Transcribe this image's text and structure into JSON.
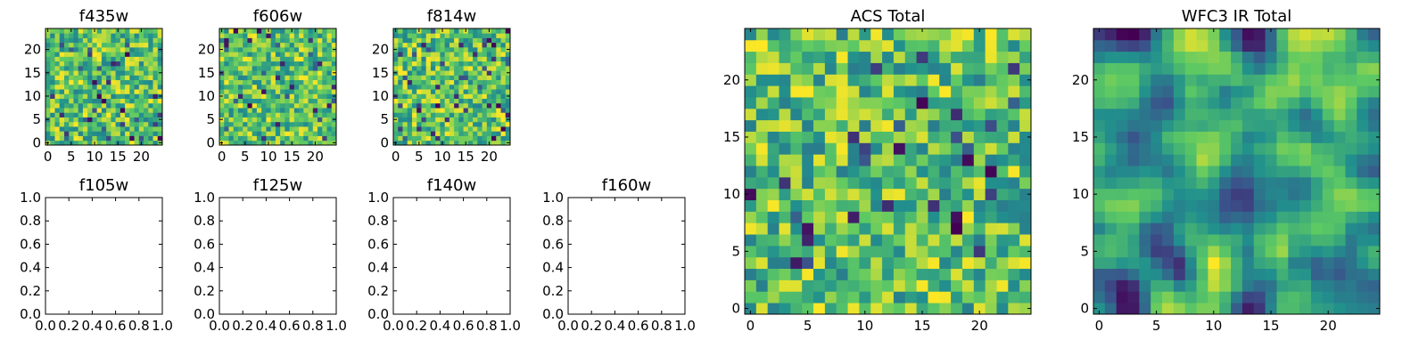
{
  "chart_data": [
    {
      "id": "f435w",
      "type": "heatmap",
      "title": "f435w",
      "grid_size": 25,
      "xlim": [
        -0.5,
        24.5
      ],
      "ylim": [
        -0.5,
        24.5
      ],
      "xticks": [
        0,
        5,
        10,
        15,
        20
      ],
      "xtick_labels": [
        "0",
        "5",
        "10",
        "15",
        "20"
      ],
      "yticks": [
        0,
        5,
        10,
        15,
        20
      ],
      "ytick_labels": [
        "0",
        "5",
        "10",
        "15",
        "20"
      ],
      "pixel_values": "random",
      "seed": 435,
      "smoothness": 0
    },
    {
      "id": "f606w",
      "type": "heatmap",
      "title": "f606w",
      "grid_size": 25,
      "xlim": [
        -0.5,
        24.5
      ],
      "ylim": [
        -0.5,
        24.5
      ],
      "xticks": [
        0,
        5,
        10,
        15,
        20
      ],
      "xtick_labels": [
        "0",
        "5",
        "10",
        "15",
        "20"
      ],
      "yticks": [
        0,
        5,
        10,
        15,
        20
      ],
      "ytick_labels": [
        "0",
        "5",
        "10",
        "15",
        "20"
      ],
      "pixel_values": "random",
      "seed": 606,
      "smoothness": 0
    },
    {
      "id": "f814w",
      "type": "heatmap",
      "title": "f814w",
      "grid_size": 25,
      "xlim": [
        -0.5,
        24.5
      ],
      "ylim": [
        -0.5,
        24.5
      ],
      "xticks": [
        0,
        5,
        10,
        15,
        20
      ],
      "xtick_labels": [
        "0",
        "5",
        "10",
        "15",
        "20"
      ],
      "yticks": [
        0,
        5,
        10,
        15,
        20
      ],
      "ytick_labels": [
        "0",
        "5",
        "10",
        "15",
        "20"
      ],
      "pixel_values": "random",
      "seed": 814,
      "smoothness": 0
    },
    {
      "id": "f105w",
      "type": "empty",
      "title": "f105w",
      "xlim": [
        0,
        1
      ],
      "ylim": [
        0,
        1
      ],
      "xticks": [
        0,
        0.2,
        0.4,
        0.6,
        0.8,
        1.0
      ],
      "xtick_labels": [
        "0.0",
        "0.2",
        "0.4",
        "0.6",
        "0.8",
        "1.0"
      ],
      "yticks": [
        0,
        0.2,
        0.4,
        0.6,
        0.8,
        1.0
      ],
      "ytick_labels": [
        "0.0",
        "0.2",
        "0.4",
        "0.6",
        "0.8",
        "1.0"
      ]
    },
    {
      "id": "f125w",
      "type": "empty",
      "title": "f125w",
      "xlim": [
        0,
        1
      ],
      "ylim": [
        0,
        1
      ],
      "xticks": [
        0,
        0.2,
        0.4,
        0.6,
        0.8,
        1.0
      ],
      "xtick_labels": [
        "0.0",
        "0.2",
        "0.4",
        "0.6",
        "0.8",
        "1.0"
      ],
      "yticks": [
        0,
        0.2,
        0.4,
        0.6,
        0.8,
        1.0
      ],
      "ytick_labels": [
        "0.0",
        "0.2",
        "0.4",
        "0.6",
        "0.8",
        "1.0"
      ]
    },
    {
      "id": "f140w",
      "type": "empty",
      "title": "f140w",
      "xlim": [
        0,
        1
      ],
      "ylim": [
        0,
        1
      ],
      "xticks": [
        0,
        0.2,
        0.4,
        0.6,
        0.8,
        1.0
      ],
      "xtick_labels": [
        "0.0",
        "0.2",
        "0.4",
        "0.6",
        "0.8",
        "1.0"
      ],
      "yticks": [
        0,
        0.2,
        0.4,
        0.6,
        0.8,
        1.0
      ],
      "ytick_labels": [
        "0.0",
        "0.2",
        "0.4",
        "0.6",
        "0.8",
        "1.0"
      ]
    },
    {
      "id": "f160w",
      "type": "empty",
      "title": "f160w",
      "xlim": [
        0,
        1
      ],
      "ylim": [
        0,
        1
      ],
      "xticks": [
        0,
        0.2,
        0.4,
        0.6,
        0.8,
        1.0
      ],
      "xtick_labels": [
        "0.0",
        "0.2",
        "0.4",
        "0.6",
        "0.8",
        "1.0"
      ],
      "yticks": [
        0,
        0.2,
        0.4,
        0.6,
        0.8,
        1.0
      ],
      "ytick_labels": [
        "0.0",
        "0.2",
        "0.4",
        "0.6",
        "0.8",
        "1.0"
      ]
    },
    {
      "id": "acs-total",
      "type": "heatmap",
      "title": "ACS Total",
      "grid_size": 25,
      "xlim": [
        -0.5,
        24.5
      ],
      "ylim": [
        -0.5,
        24.5
      ],
      "xticks": [
        0,
        5,
        10,
        15,
        20
      ],
      "xtick_labels": [
        "0",
        "5",
        "10",
        "15",
        "20"
      ],
      "yticks": [
        0,
        5,
        10,
        15,
        20
      ],
      "ytick_labels": [
        "0",
        "5",
        "10",
        "15",
        "20"
      ],
      "pixel_values": "random",
      "seed": 1234,
      "smoothness": 0
    },
    {
      "id": "wfc3-ir-total",
      "type": "heatmap",
      "title": "WFC3 IR Total",
      "grid_size": 25,
      "xlim": [
        -0.5,
        24.5
      ],
      "ylim": [
        -0.5,
        24.5
      ],
      "xticks": [
        0,
        5,
        10,
        15,
        20
      ],
      "xtick_labels": [
        "0",
        "5",
        "10",
        "15",
        "20"
      ],
      "yticks": [
        0,
        5,
        10,
        15,
        20
      ],
      "ytick_labels": [
        "0",
        "5",
        "10",
        "15",
        "20"
      ],
      "pixel_values": "random",
      "seed": 3160,
      "smoothness": 2
    }
  ],
  "colormap": "viridis",
  "colormap_stops": [
    "#440154",
    "#3b528b",
    "#21908d",
    "#5dc963",
    "#fde725"
  ]
}
